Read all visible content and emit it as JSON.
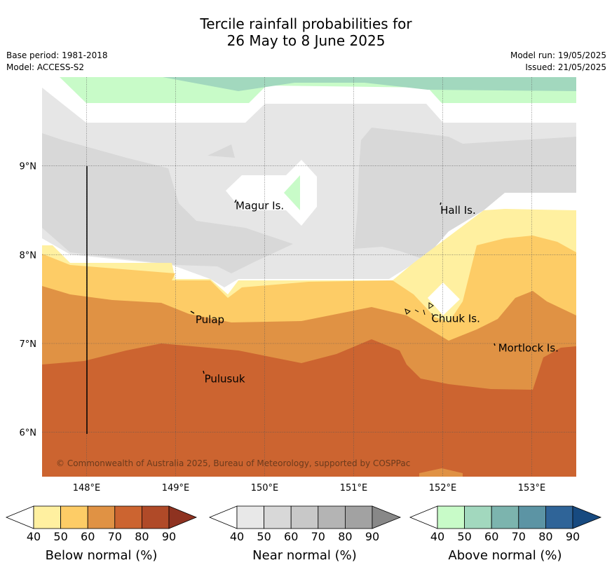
{
  "title_line1": "Tercile rainfall probabilities for",
  "title_line2": "26 May to 8 June 2025",
  "meta": {
    "base_period": "Base period: 1981-2018",
    "model": "Model: ACCESS-S2",
    "model_run": "Model run: 19/05/2025",
    "issued": "Issued: 21/05/2025"
  },
  "copyright": "© Commonwealth of Australia 2025, Bureau of Meteorology, supported by COSPPac",
  "chart_data": {
    "type": "heatmap",
    "x_ticks": [
      "148°E",
      "149°E",
      "150°E",
      "151°E",
      "152°E",
      "153°E"
    ],
    "x_tick_values": [
      148,
      149,
      150,
      151,
      152,
      153
    ],
    "y_ticks": [
      "6°N",
      "7°N",
      "8°N",
      "9°N"
    ],
    "y_tick_values": [
      6,
      7,
      8,
      9
    ],
    "xlim": [
      147.5,
      153.5
    ],
    "ylim": [
      5.5,
      10
    ],
    "grid": true,
    "places": [
      {
        "name": "Magur Is.",
        "lon": 149.65,
        "lat": 8.55
      },
      {
        "name": "Hall Is.",
        "lon": 151.95,
        "lat": 8.5
      },
      {
        "name": "Pulap",
        "lon": 149.2,
        "lat": 7.27
      },
      {
        "name": "Chuuk Is.",
        "lon": 151.85,
        "lat": 7.28
      },
      {
        "name": "Mortlock Is.",
        "lon": 152.6,
        "lat": 6.95
      },
      {
        "name": "Pulusuk",
        "lon": 149.3,
        "lat": 6.6
      }
    ],
    "colorbars": [
      {
        "name": "Below normal (%)",
        "ticks": [
          "40",
          "50",
          "60",
          "70",
          "80",
          "90"
        ],
        "colors": [
          "#fff0a0",
          "#fdcc66",
          "#e09244",
          "#cc6430",
          "#b04a28",
          "#8e3220"
        ]
      },
      {
        "name": "Near normal (%)",
        "ticks": [
          "40",
          "50",
          "60",
          "70",
          "80",
          "90"
        ],
        "colors": [
          "#e8e8e8",
          "#d8d8d8",
          "#c8c8c8",
          "#b4b4b4",
          "#a2a2a2",
          "#888888"
        ]
      },
      {
        "name": "Above normal (%)",
        "ticks": [
          "40",
          "50",
          "60",
          "70",
          "80",
          "90"
        ],
        "colors": [
          "#c8fbc8",
          "#a2d8be",
          "#7cb4ae",
          "#5c94a4",
          "#2f6498",
          "#174a80"
        ]
      }
    ]
  }
}
